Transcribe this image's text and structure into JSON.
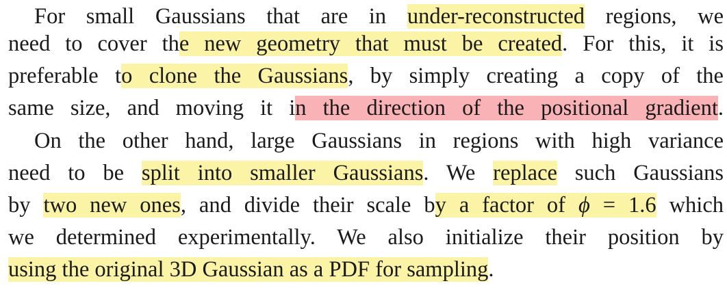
{
  "lines": [
    {
      "segments": [
        {
          "text": "For small Gaussians that are in ",
          "hl": "none"
        },
        {
          "text": "under-reconstructed",
          "hl": "yellow"
        },
        {
          "text": " regions, we",
          "hl": "none"
        }
      ]
    },
    {
      "segments": [
        {
          "text": "need to cover th",
          "hl": "none"
        },
        {
          "text": "e new geometry that must be created",
          "hl": "yellow"
        },
        {
          "text": ". For this, it is",
          "hl": "none"
        }
      ]
    },
    {
      "segments": [
        {
          "text": "preferable t",
          "hl": "none"
        },
        {
          "text": "o clone the Gaussians",
          "hl": "yellow"
        },
        {
          "text": ", by simply creating a copy of the",
          "hl": "none"
        }
      ]
    },
    {
      "segments": [
        {
          "text": "same size, and moving it i",
          "hl": "none"
        },
        {
          "text": "n the direction of the positional gradient",
          "hl": "red"
        },
        {
          "text": ".",
          "hl": "none"
        }
      ]
    },
    {
      "segments": [
        {
          "text": "On the other hand, large Gaussians in regions with high variance",
          "hl": "none"
        }
      ]
    },
    {
      "segments": [
        {
          "text": "need to be ",
          "hl": "none"
        },
        {
          "text": "split into smaller Gaussians",
          "hl": "yellow"
        },
        {
          "text": ". We ",
          "hl": "none"
        },
        {
          "text": "replace",
          "hl": "yellow"
        },
        {
          "text": " such Gaussians",
          "hl": "none"
        }
      ]
    },
    {
      "segments": [
        {
          "text": "by ",
          "hl": "none"
        },
        {
          "text": "two new ones",
          "hl": "yellow"
        },
        {
          "text": ", and divide their scale b",
          "hl": "none"
        },
        {
          "text": "y a factor of ",
          "hl": "yellow"
        },
        {
          "text": "ϕ",
          "hl": "yellow",
          "math": true
        },
        {
          "text": " = 1.6",
          "hl": "yellow"
        },
        {
          "text": " which",
          "hl": "none"
        }
      ]
    },
    {
      "segments": [
        {
          "text": "we determined experimentally. We also initialize their position by",
          "hl": "none"
        }
      ]
    },
    {
      "segments": [
        {
          "text": "using the original 3D Gaussian as a PDF for sampling",
          "hl": "yellow"
        },
        {
          "text": ".",
          "hl": "none"
        }
      ]
    }
  ],
  "colors": {
    "text": "#1a1a1a",
    "highlight_yellow": "#fbf3a6",
    "highlight_red": "#f9b3b6"
  }
}
